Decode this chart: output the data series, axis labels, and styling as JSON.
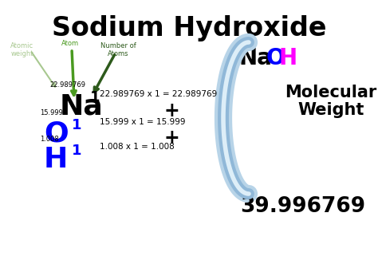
{
  "title": "Sodium Hydroxide",
  "title_fontsize": 24,
  "background_color": "#ffffff",
  "Na_weight": "22.989769",
  "O_weight": "15.999",
  "H_weight": "1.008",
  "Na_eq": "22.989769 x 1 = 22.989769",
  "O_eq": "15.999 x 1 = 15.999",
  "H_eq": "1.008 x 1 = 1.008",
  "mol_weight_val": "39.996769",
  "mol_weight_label1": "Molecular",
  "mol_weight_label2": "Weight",
  "arrow_label_atomic": "Atomic\nweight",
  "arrow_label_atom": "Atom",
  "arrow_label_number": "Number of\nAtoms",
  "light_green": "#a8c890",
  "dark_green": "#2d5a1b",
  "medium_green": "#4a9a20",
  "bracket_color": "#b8d4e8",
  "bracket_edge": "#90b8d8"
}
